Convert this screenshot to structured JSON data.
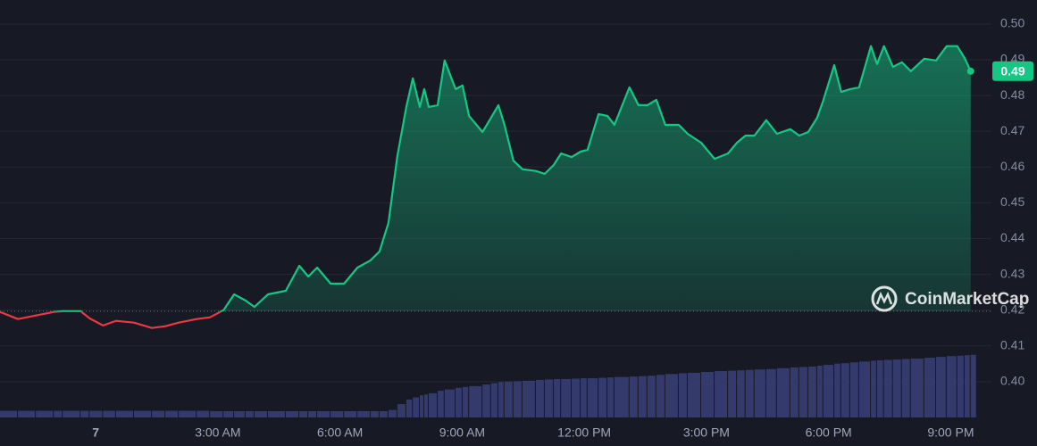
{
  "chart_data": {
    "type": "line",
    "x": [
      -2.35,
      -1.91,
      -1.47,
      -1.03,
      -0.81,
      -0.37,
      -0.15,
      0.18,
      0.5,
      0.94,
      1.38,
      1.71,
      2.04,
      2.48,
      2.81,
      3.14,
      3.4,
      3.68,
      3.9,
      4.23,
      4.67,
      5.0,
      5.22,
      5.44,
      5.77,
      6.1,
      6.43,
      6.75,
      6.97,
      7.19,
      7.41,
      7.63,
      7.79,
      7.96,
      8.07,
      8.18,
      8.4,
      8.57,
      8.84,
      9.01,
      9.17,
      9.5,
      9.71,
      9.89,
      10.04,
      10.26,
      10.48,
      10.81,
      11.03,
      11.25,
      11.43,
      11.69,
      11.91,
      12.08,
      12.35,
      12.57,
      12.74,
      13.11,
      13.33,
      13.55,
      13.77,
      13.99,
      14.32,
      14.54,
      14.87,
      15.2,
      15.53,
      15.75,
      15.96,
      16.18,
      16.47,
      16.73,
      17.06,
      17.28,
      17.5,
      17.72,
      17.87,
      18.14,
      18.31,
      18.53,
      18.75,
      19.04,
      19.19,
      19.36,
      19.58,
      19.8,
      20.02,
      20.35,
      20.64,
      20.9,
      21.16,
      21.34,
      21.49
    ],
    "values": [
      0.4195,
      0.4175,
      0.4185,
      0.4195,
      0.4197,
      0.4197,
      0.4177,
      0.4157,
      0.417,
      0.4165,
      0.415,
      0.4155,
      0.4165,
      0.4175,
      0.418,
      0.42,
      0.4244,
      0.4227,
      0.4209,
      0.4244,
      0.4254,
      0.4324,
      0.4294,
      0.4319,
      0.4274,
      0.4274,
      0.4319,
      0.4339,
      0.4364,
      0.4444,
      0.4631,
      0.4768,
      0.4848,
      0.4768,
      0.4818,
      0.4768,
      0.4773,
      0.4898,
      0.4818,
      0.4828,
      0.4743,
      0.4698,
      0.4738,
      0.4773,
      0.4718,
      0.4618,
      0.4594,
      0.4589,
      0.4581,
      0.4606,
      0.4638,
      0.4628,
      0.4643,
      0.4648,
      0.4748,
      0.4743,
      0.4718,
      0.4823,
      0.4773,
      0.4773,
      0.4788,
      0.4718,
      0.4718,
      0.4693,
      0.4668,
      0.4623,
      0.4638,
      0.4668,
      0.4688,
      0.4688,
      0.4731,
      0.4693,
      0.4706,
      0.4688,
      0.4698,
      0.4738,
      0.4786,
      0.4885,
      0.481,
      0.4818,
      0.4823,
      0.4938,
      0.4888,
      0.4938,
      0.488,
      0.4893,
      0.4868,
      0.4903,
      0.4898,
      0.4938,
      0.4938,
      0.4905,
      0.4868
    ],
    "volume": [
      1.6,
      1.6,
      1.6,
      1.6,
      1.6,
      1.6,
      1.6,
      1.6,
      1.6,
      1.6,
      1.6,
      1.6,
      1.6,
      1.6,
      1.5,
      1.5,
      1.5,
      1.5,
      1.5,
      1.5,
      1.5,
      1.5,
      1.5,
      1.5,
      1.5,
      1.5,
      1.5,
      1.5,
      1.5,
      1.8,
      3.2,
      4.3,
      4.8,
      5.3,
      5.5,
      5.8,
      6.4,
      6.7,
      7.1,
      7.3,
      7.5,
      7.9,
      8.2,
      8.5,
      8.6,
      8.7,
      8.8,
      9.0,
      9.1,
      9.2,
      9.2,
      9.3,
      9.4,
      9.4,
      9.5,
      9.6,
      9.7,
      9.8,
      9.9,
      10.0,
      10.2,
      10.4,
      10.6,
      10.7,
      10.9,
      11.1,
      11.2,
      11.3,
      11.4,
      11.5,
      11.6,
      11.8,
      12.0,
      12.1,
      12.2,
      12.4,
      12.6,
      12.9,
      13.0,
      13.2,
      13.4,
      13.6,
      13.7,
      13.8,
      13.9,
      14.0,
      14.1,
      14.3,
      14.5,
      14.7,
      14.8,
      14.9,
      15.0
    ],
    "vlim": [
      0,
      100
    ],
    "baseline": 0.4197,
    "last_label": "0.49",
    "up_color": "#16c784",
    "down_color": "#ea3943",
    "volume_color": "#343a6b",
    "xlim": [
      -2.35,
      22
    ],
    "xticks": [
      {
        "value": 0,
        "label": "7"
      },
      {
        "value": 3,
        "label": "3:00 AM"
      },
      {
        "value": 6,
        "label": "6:00 AM"
      },
      {
        "value": 9,
        "label": "9:00 AM"
      },
      {
        "value": 12,
        "label": "12:00 PM"
      },
      {
        "value": 15,
        "label": "3:00 PM"
      },
      {
        "value": 18,
        "label": "6:00 PM"
      },
      {
        "value": 21,
        "label": "9:00 PM"
      }
    ],
    "ylim": [
      0.39,
      0.5067
    ],
    "yticks": [
      {
        "value": 0.4,
        "label": "0.40"
      },
      {
        "value": 0.41,
        "label": "0.41"
      },
      {
        "value": 0.42,
        "label": "0.42"
      },
      {
        "value": 0.43,
        "label": "0.43"
      },
      {
        "value": 0.44,
        "label": "0.44"
      },
      {
        "value": 0.45,
        "label": "0.45"
      },
      {
        "value": 0.46,
        "label": "0.46"
      },
      {
        "value": 0.47,
        "label": "0.47"
      },
      {
        "value": 0.48,
        "label": "0.48"
      },
      {
        "value": 0.49,
        "label": "0.49"
      },
      {
        "value": 0.5,
        "label": "0.50"
      }
    ],
    "grid": true,
    "watermark": "CoinMarketCap"
  }
}
